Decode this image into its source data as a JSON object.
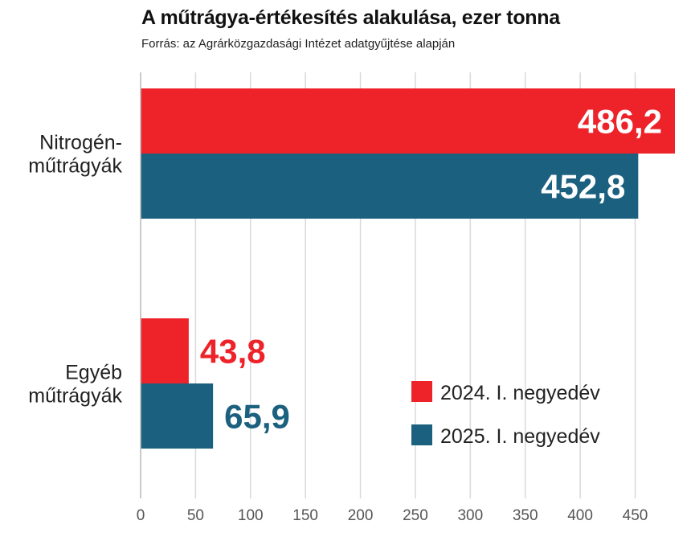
{
  "header": {
    "title": "A műtrágya-értékesítés alakulása, ezer tonna",
    "subtitle": "Forrás: az Agrárközgazdasági Intézet adatgyűjtése alapján"
  },
  "chart_data": {
    "type": "bar",
    "orientation": "horizontal",
    "title": "A műtrágya-értékesítés alakulása, ezer tonna",
    "subtitle": "Forrás: az Agrárközgazdasági Intézet adatgyűjtése alapján",
    "categories": [
      {
        "lines": [
          "Nitrogén-",
          "műtrágyák"
        ]
      },
      {
        "lines": [
          "Egyéb",
          "műtrágyák"
        ]
      }
    ],
    "series": [
      {
        "name": "2024. I. negyedév",
        "color": "#ee2229",
        "values": [
          486.2,
          43.8
        ],
        "labels": [
          "486,2",
          "43,8"
        ]
      },
      {
        "name": "2025. I. negyedév",
        "color": "#1b607f",
        "values": [
          452.8,
          65.9
        ],
        "labels": [
          "452,8",
          "65,9"
        ]
      }
    ],
    "x_ticks": [
      0,
      50,
      100,
      150,
      200,
      250,
      300,
      350,
      400,
      450
    ],
    "x_tick_labels": [
      "0",
      "50",
      "100",
      "150",
      "200",
      "250",
      "300",
      "350",
      "400",
      "450"
    ],
    "xlim": [
      0,
      486.2
    ],
    "grid": "vertical",
    "legend": "bottom-right"
  }
}
